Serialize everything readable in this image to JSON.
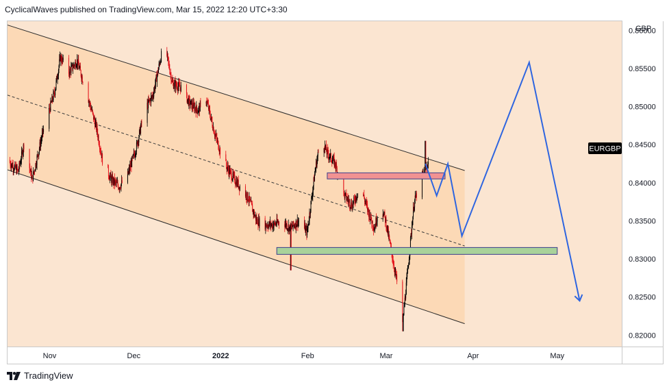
{
  "header": {
    "publisher_line": "CyclicalWaves published on TradingView.com, Mar 15, 2022 12:20 UTC+3:30"
  },
  "footer": {
    "brand_label": "TradingView",
    "logo_icon": "tradingview-logo-icon"
  },
  "colors": {
    "background": "#fbe5d1",
    "channel_fill": "#fcd9b6",
    "candle_up": "#000000",
    "candle_down": "#e4111a",
    "projection": "#2e65e0",
    "resistance_fill": "#f19292",
    "support_fill": "#a9d29a",
    "zone_border": "#3a3e8c",
    "symbol_tag_bg": "#000000",
    "axis_text": "#131722"
  },
  "chart_data": {
    "type": "candlestick",
    "symbol": "EURGBP",
    "currency": "GBP",
    "price_axis": {
      "ticks": [
        "0.85500",
        "0.85000",
        "0.84500",
        "0.84000",
        "0.83500",
        "0.83000",
        "0.82500",
        "0.82000"
      ],
      "partial_top_tick": "0.86000",
      "range": [
        0.8185,
        0.8612
      ]
    },
    "time_axis": {
      "ticks": [
        {
          "label": "Nov",
          "date": "2021-11-01"
        },
        {
          "label": "Dec",
          "date": "2021-12-01"
        },
        {
          "label": "2022",
          "date": "2022-01-01"
        },
        {
          "label": "Feb",
          "date": "2022-02-01"
        },
        {
          "label": "Mar",
          "date": "2022-03-01"
        },
        {
          "label": "Apr",
          "date": "2022-04-01"
        },
        {
          "label": "May",
          "date": "2022-05-01"
        }
      ],
      "range": [
        "2021-10-17",
        "2022-05-24"
      ]
    },
    "last_price_label": "EURGBP",
    "price_path": [
      [
        "2021-10-17",
        0.843
      ],
      [
        "2021-10-21",
        0.8415
      ],
      [
        "2021-10-23",
        0.845
      ],
      [
        "2021-10-26",
        0.8405
      ],
      [
        "2021-10-30",
        0.847
      ],
      [
        "2021-11-03",
        0.852
      ],
      [
        "2021-11-05",
        0.8565
      ],
      [
        "2021-11-08",
        0.8545
      ],
      [
        "2021-11-11",
        0.856
      ],
      [
        "2021-11-15",
        0.851
      ],
      [
        "2021-11-18",
        0.847
      ],
      [
        "2021-11-20",
        0.843
      ],
      [
        "2021-11-23",
        0.8405
      ],
      [
        "2021-11-26",
        0.8395
      ],
      [
        "2021-11-29",
        0.841
      ],
      [
        "2021-12-02",
        0.8445
      ],
      [
        "2021-12-05",
        0.8495
      ],
      [
        "2021-12-08",
        0.8515
      ],
      [
        "2021-12-10",
        0.855
      ],
      [
        "2021-12-12",
        0.8585
      ],
      [
        "2021-12-15",
        0.853
      ],
      [
        "2021-12-18",
        0.8525
      ],
      [
        "2021-12-21",
        0.8505
      ],
      [
        "2021-12-24",
        0.8495
      ],
      [
        "2021-12-27",
        0.851
      ],
      [
        "2021-12-30",
        0.8465
      ],
      [
        "2022-01-02",
        0.843
      ],
      [
        "2022-01-05",
        0.841
      ],
      [
        "2022-01-08",
        0.8395
      ],
      [
        "2022-01-11",
        0.838
      ],
      [
        "2022-01-14",
        0.835
      ],
      [
        "2022-01-17",
        0.8345
      ],
      [
        "2022-01-20",
        0.8345
      ],
      [
        "2022-01-23",
        0.835
      ],
      [
        "2022-01-26",
        0.834
      ],
      [
        "2022-01-29",
        0.835
      ],
      [
        "2022-02-01",
        0.8335
      ],
      [
        "2022-02-04",
        0.842
      ],
      [
        "2022-02-06",
        0.846
      ],
      [
        "2022-02-08",
        0.844
      ],
      [
        "2022-02-11",
        0.8425
      ],
      [
        "2022-02-14",
        0.8385
      ],
      [
        "2022-02-17",
        0.837
      ],
      [
        "2022-02-20",
        0.8395
      ],
      [
        "2022-02-23",
        0.836
      ],
      [
        "2022-02-25",
        0.834
      ],
      [
        "2022-02-27",
        0.8375
      ],
      [
        "2022-03-01",
        0.835
      ],
      [
        "2022-03-03",
        0.831
      ],
      [
        "2022-03-05",
        0.827
      ],
      [
        "2022-03-07",
        0.8215
      ],
      [
        "2022-03-09",
        0.829
      ],
      [
        "2022-03-11",
        0.837
      ],
      [
        "2022-03-13",
        0.84
      ],
      [
        "2022-03-15",
        0.8415
      ],
      [
        "2022-03-16",
        0.8425
      ]
    ],
    "notable_extremes": [
      {
        "date": "2022-01-26",
        "low": 0.8285
      },
      {
        "date": "2022-03-07",
        "low": 0.8205
      },
      {
        "date": "2022-03-15",
        "high": 0.8455
      }
    ],
    "channel": {
      "upper": [
        [
          "2021-10-17",
          0.8607
        ],
        [
          "2022-03-29",
          0.8416
        ]
      ],
      "middle_dashed": [
        [
          "2021-10-17",
          0.8515
        ],
        [
          "2022-03-29",
          0.8317
        ]
      ],
      "lower": [
        [
          "2021-10-17",
          0.8417
        ],
        [
          "2022-03-29",
          0.8215
        ]
      ],
      "shaded_until": "2022-03-29"
    },
    "zones": [
      {
        "name": "resistance",
        "from": "2022-02-08",
        "to": "2022-03-22",
        "top": 0.8413,
        "bottom": 0.8405
      },
      {
        "name": "support",
        "from": "2022-01-21",
        "to": "2022-05-01",
        "top": 0.8315,
        "bottom": 0.8306
      }
    ],
    "projection_path": [
      [
        "2022-03-15",
        0.8425
      ],
      [
        "2022-03-19",
        0.8383
      ],
      [
        "2022-03-23",
        0.8425
      ],
      [
        "2022-03-28",
        0.833
      ],
      [
        "2022-04-21",
        0.8558
      ],
      [
        "2022-05-09",
        0.8245
      ]
    ]
  }
}
